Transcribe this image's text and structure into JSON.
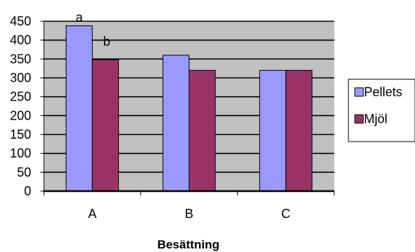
{
  "chart_data": {
    "type": "bar",
    "categories": [
      "A",
      "B",
      "C"
    ],
    "series": [
      {
        "name": "Pellets",
        "values": [
          438,
          360,
          320
        ],
        "color": "#9999ff"
      },
      {
        "name": "Mjöl",
        "values": [
          348,
          320,
          320
        ],
        "color": "#993366"
      }
    ],
    "xlabel": "Besättning",
    "ylabel": "",
    "ylim": [
      0,
      450
    ],
    "yticks": [
      0,
      50,
      100,
      150,
      200,
      250,
      300,
      350,
      400,
      450
    ],
    "grid": true,
    "plot_background": "#c0c0c0",
    "legend_position": "right",
    "annotations": [
      {
        "text": "a",
        "series": 0,
        "category": 0
      },
      {
        "text": "b",
        "series": 1,
        "category": 0
      }
    ]
  }
}
